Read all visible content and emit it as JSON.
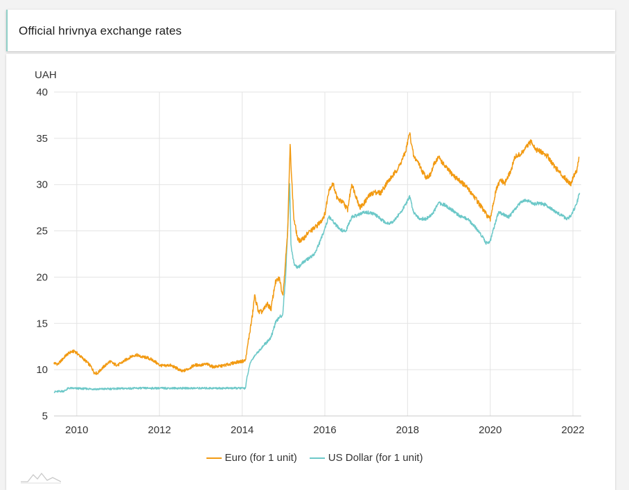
{
  "header": {
    "title": "Official hrivnya exchange rates"
  },
  "colors": {
    "euro": "#f29a12",
    "usd": "#6cc8c8",
    "grid": "#e3e3e3"
  },
  "icons": {
    "logo": "mountain-logo-icon"
  },
  "chart_data": {
    "type": "line",
    "title": "Official hrivnya exchange rates",
    "ylabel": "UAH",
    "xlabel": "",
    "ylim": [
      5,
      40
    ],
    "xlim": [
      2009.45,
      2022.2
    ],
    "yticks": [
      5,
      10,
      15,
      20,
      25,
      30,
      35,
      40
    ],
    "xticks": [
      2010,
      2012,
      2014,
      2016,
      2018,
      2020,
      2022
    ],
    "grid": true,
    "legend_position": "bottom-center",
    "series": [
      {
        "name": "Euro (for 1 unit)",
        "points": [
          [
            2009.45,
            10.7
          ],
          [
            2009.55,
            10.6
          ],
          [
            2009.65,
            11.1
          ],
          [
            2009.75,
            11.6
          ],
          [
            2009.85,
            11.9
          ],
          [
            2009.95,
            12.0
          ],
          [
            2010.05,
            11.6
          ],
          [
            2010.15,
            11.2
          ],
          [
            2010.25,
            10.8
          ],
          [
            2010.35,
            10.3
          ],
          [
            2010.42,
            9.7
          ],
          [
            2010.5,
            9.6
          ],
          [
            2010.6,
            10.1
          ],
          [
            2010.7,
            10.5
          ],
          [
            2010.8,
            10.9
          ],
          [
            2010.9,
            10.6
          ],
          [
            2011.0,
            10.5
          ],
          [
            2011.1,
            10.8
          ],
          [
            2011.2,
            11.1
          ],
          [
            2011.35,
            11.5
          ],
          [
            2011.45,
            11.6
          ],
          [
            2011.55,
            11.4
          ],
          [
            2011.7,
            11.3
          ],
          [
            2011.85,
            11.0
          ],
          [
            2012.0,
            10.5
          ],
          [
            2012.1,
            10.4
          ],
          [
            2012.25,
            10.5
          ],
          [
            2012.4,
            10.2
          ],
          [
            2012.55,
            9.8
          ],
          [
            2012.7,
            10.1
          ],
          [
            2012.85,
            10.5
          ],
          [
            2013.0,
            10.5
          ],
          [
            2013.15,
            10.6
          ],
          [
            2013.3,
            10.3
          ],
          [
            2013.5,
            10.4
          ],
          [
            2013.7,
            10.6
          ],
          [
            2013.85,
            10.8
          ],
          [
            2014.0,
            10.9
          ],
          [
            2014.08,
            11.0
          ],
          [
            2014.15,
            13.1
          ],
          [
            2014.25,
            15.9
          ],
          [
            2014.3,
            18.0
          ],
          [
            2014.4,
            16.2
          ],
          [
            2014.5,
            16.3
          ],
          [
            2014.6,
            17.1
          ],
          [
            2014.7,
            16.6
          ],
          [
            2014.8,
            19.4
          ],
          [
            2014.9,
            19.9
          ],
          [
            2014.98,
            18.0
          ],
          [
            2015.02,
            20.0
          ],
          [
            2015.1,
            25.0
          ],
          [
            2015.16,
            34.3
          ],
          [
            2015.2,
            30.5
          ],
          [
            2015.25,
            26.3
          ],
          [
            2015.35,
            24.0
          ],
          [
            2015.45,
            24.0
          ],
          [
            2015.6,
            24.8
          ],
          [
            2015.75,
            25.3
          ],
          [
            2015.9,
            26.0
          ],
          [
            2016.0,
            26.8
          ],
          [
            2016.1,
            29.5
          ],
          [
            2016.2,
            30.1
          ],
          [
            2016.3,
            28.5
          ],
          [
            2016.45,
            28.0
          ],
          [
            2016.55,
            27.3
          ],
          [
            2016.65,
            30.1
          ],
          [
            2016.75,
            28.8
          ],
          [
            2016.85,
            27.5
          ],
          [
            2016.95,
            28.0
          ],
          [
            2017.05,
            28.7
          ],
          [
            2017.2,
            29.2
          ],
          [
            2017.35,
            29.1
          ],
          [
            2017.5,
            30.2
          ],
          [
            2017.65,
            31.0
          ],
          [
            2017.8,
            32.0
          ],
          [
            2017.95,
            33.5
          ],
          [
            2018.05,
            35.6
          ],
          [
            2018.15,
            33.0
          ],
          [
            2018.25,
            32.5
          ],
          [
            2018.35,
            31.5
          ],
          [
            2018.45,
            30.8
          ],
          [
            2018.55,
            31.0
          ],
          [
            2018.65,
            32.3
          ],
          [
            2018.75,
            33.0
          ],
          [
            2018.9,
            32.0
          ],
          [
            2019.0,
            31.5
          ],
          [
            2019.15,
            30.8
          ],
          [
            2019.3,
            30.3
          ],
          [
            2019.45,
            29.6
          ],
          [
            2019.6,
            28.8
          ],
          [
            2019.75,
            27.8
          ],
          [
            2019.9,
            26.8
          ],
          [
            2020.0,
            26.2
          ],
          [
            2020.05,
            27.5
          ],
          [
            2020.15,
            29.5
          ],
          [
            2020.25,
            30.5
          ],
          [
            2020.35,
            30.1
          ],
          [
            2020.5,
            31.5
          ],
          [
            2020.6,
            33.0
          ],
          [
            2020.75,
            33.3
          ],
          [
            2020.9,
            34.2
          ],
          [
            2021.0,
            34.7
          ],
          [
            2021.1,
            33.8
          ],
          [
            2021.25,
            33.5
          ],
          [
            2021.4,
            33.0
          ],
          [
            2021.55,
            32.0
          ],
          [
            2021.7,
            31.2
          ],
          [
            2021.85,
            30.5
          ],
          [
            2021.95,
            30.1
          ],
          [
            2022.02,
            31.0
          ],
          [
            2022.1,
            31.6
          ],
          [
            2022.15,
            33.0
          ]
        ]
      },
      {
        "name": "US Dollar (for 1 unit)",
        "points": [
          [
            2009.45,
            7.6
          ],
          [
            2009.7,
            7.7
          ],
          [
            2009.8,
            8.0
          ],
          [
            2010.5,
            7.9
          ],
          [
            2011.0,
            7.95
          ],
          [
            2011.5,
            8.0
          ],
          [
            2012.5,
            8.0
          ],
          [
            2013.5,
            8.0
          ],
          [
            2014.08,
            8.0
          ],
          [
            2014.12,
            9.2
          ],
          [
            2014.2,
            10.8
          ],
          [
            2014.3,
            11.5
          ],
          [
            2014.4,
            12.0
          ],
          [
            2014.5,
            12.5
          ],
          [
            2014.6,
            13.0
          ],
          [
            2014.7,
            13.5
          ],
          [
            2014.8,
            15.0
          ],
          [
            2014.9,
            15.7
          ],
          [
            2014.98,
            15.9
          ],
          [
            2015.05,
            20.0
          ],
          [
            2015.12,
            27.0
          ],
          [
            2015.15,
            30.0
          ],
          [
            2015.18,
            23.5
          ],
          [
            2015.25,
            21.5
          ],
          [
            2015.35,
            21.0
          ],
          [
            2015.45,
            21.5
          ],
          [
            2015.6,
            22.0
          ],
          [
            2015.75,
            22.5
          ],
          [
            2015.9,
            24.0
          ],
          [
            2016.0,
            25.3
          ],
          [
            2016.1,
            26.5
          ],
          [
            2016.2,
            26.0
          ],
          [
            2016.35,
            25.2
          ],
          [
            2016.5,
            24.9
          ],
          [
            2016.65,
            26.5
          ],
          [
            2016.8,
            26.7
          ],
          [
            2016.95,
            27.0
          ],
          [
            2017.05,
            27.0
          ],
          [
            2017.2,
            26.8
          ],
          [
            2017.35,
            26.3
          ],
          [
            2017.5,
            25.8
          ],
          [
            2017.65,
            26.0
          ],
          [
            2017.8,
            26.8
          ],
          [
            2017.95,
            27.8
          ],
          [
            2018.05,
            28.7
          ],
          [
            2018.15,
            27.0
          ],
          [
            2018.3,
            26.3
          ],
          [
            2018.45,
            26.3
          ],
          [
            2018.6,
            26.8
          ],
          [
            2018.75,
            28.0
          ],
          [
            2018.9,
            27.8
          ],
          [
            2019.0,
            27.5
          ],
          [
            2019.15,
            27.0
          ],
          [
            2019.3,
            26.5
          ],
          [
            2019.45,
            26.3
          ],
          [
            2019.6,
            25.6
          ],
          [
            2019.75,
            24.8
          ],
          [
            2019.9,
            23.7
          ],
          [
            2020.0,
            23.9
          ],
          [
            2020.1,
            25.5
          ],
          [
            2020.2,
            27.0
          ],
          [
            2020.3,
            26.8
          ],
          [
            2020.45,
            26.5
          ],
          [
            2020.6,
            27.3
          ],
          [
            2020.75,
            28.2
          ],
          [
            2020.9,
            28.3
          ],
          [
            2021.05,
            27.9
          ],
          [
            2021.2,
            28.0
          ],
          [
            2021.35,
            27.8
          ],
          [
            2021.5,
            27.3
          ],
          [
            2021.65,
            26.9
          ],
          [
            2021.85,
            26.3
          ],
          [
            2021.95,
            26.6
          ],
          [
            2022.05,
            27.5
          ],
          [
            2022.12,
            28.4
          ],
          [
            2022.16,
            29.1
          ]
        ]
      }
    ]
  }
}
